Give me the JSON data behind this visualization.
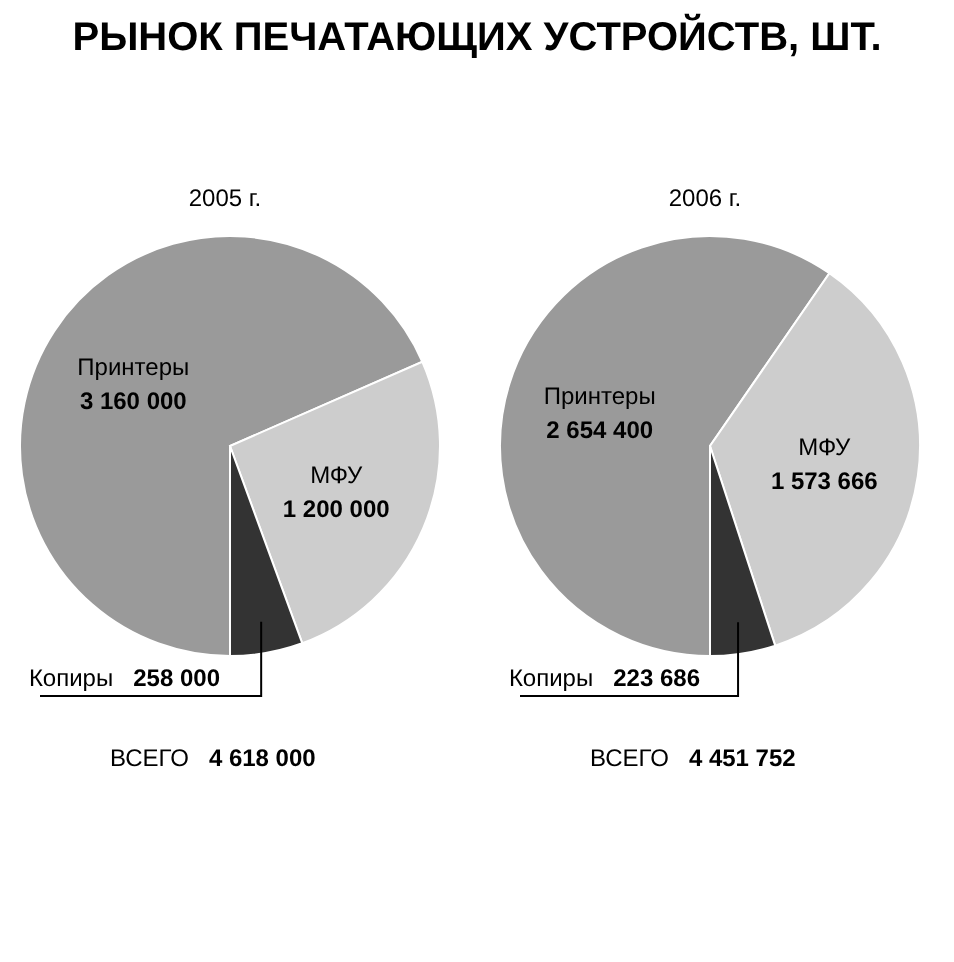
{
  "chart_data": [
    {
      "type": "pie",
      "title": "РЫНОК ПЕЧАТАЮЩИХ УСТРОЙСТВ, ШТ.",
      "subtitle": "2005 г.",
      "categories": [
        "Принтеры",
        "МФУ",
        "Копиры"
      ],
      "values": [
        3160000,
        1200000,
        258000
      ],
      "value_labels": [
        "3 160 000",
        "1 200 000",
        "258 000"
      ],
      "colors": [
        "#9a9a9a",
        "#cdcdcd",
        "#333333"
      ],
      "annotations": [
        "ВСЕГО 4 618 000"
      ]
    },
    {
      "type": "pie",
      "subtitle": "2006 г.",
      "categories": [
        "Принтеры",
        "МФУ",
        "Копиры"
      ],
      "values": [
        2654400,
        1573666,
        223686
      ],
      "value_labels": [
        "2 654 400",
        "1 573 666",
        "223 686"
      ],
      "colors": [
        "#9a9a9a",
        "#cdcdcd",
        "#333333"
      ],
      "annotations": [
        "ВСЕГО 4 451 752"
      ]
    }
  ]
}
